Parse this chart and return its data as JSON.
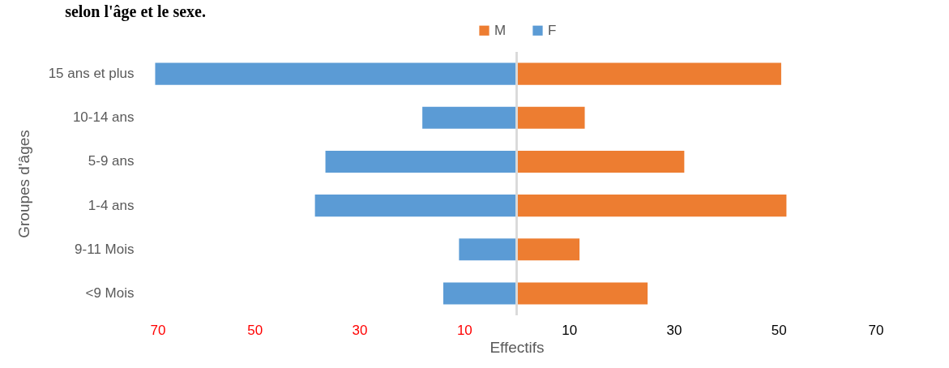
{
  "chart_data": {
    "type": "bar",
    "orientation": "horizontal",
    "stacked": true,
    "title": "selon l'âge et le sexe.",
    "xlabel": "Effectifs",
    "ylabel": "Groupes d'âges",
    "categories": [
      "15 ans et plus",
      "10-14 ans",
      "5-9 ans",
      "1-4 ans",
      "9-11 Mois",
      "<9 Mois"
    ],
    "series": [
      {
        "name": "M",
        "color": "#ed7d31",
        "values": [
          50.5,
          13,
          32,
          51.5,
          12,
          25
        ]
      },
      {
        "name": "F",
        "color": "#5b9bd5",
        "values": [
          -69,
          -18,
          -36.5,
          -38.5,
          -11,
          -14
        ]
      }
    ],
    "xlim": [
      -70,
      70
    ],
    "xticks": [
      {
        "value": -70,
        "label": "70"
      },
      {
        "value": -50,
        "label": "50"
      },
      {
        "value": -30,
        "label": "30"
      },
      {
        "value": -10,
        "label": "10"
      },
      10,
      30,
      50,
      70
    ],
    "legend": "top",
    "grid": false
  }
}
